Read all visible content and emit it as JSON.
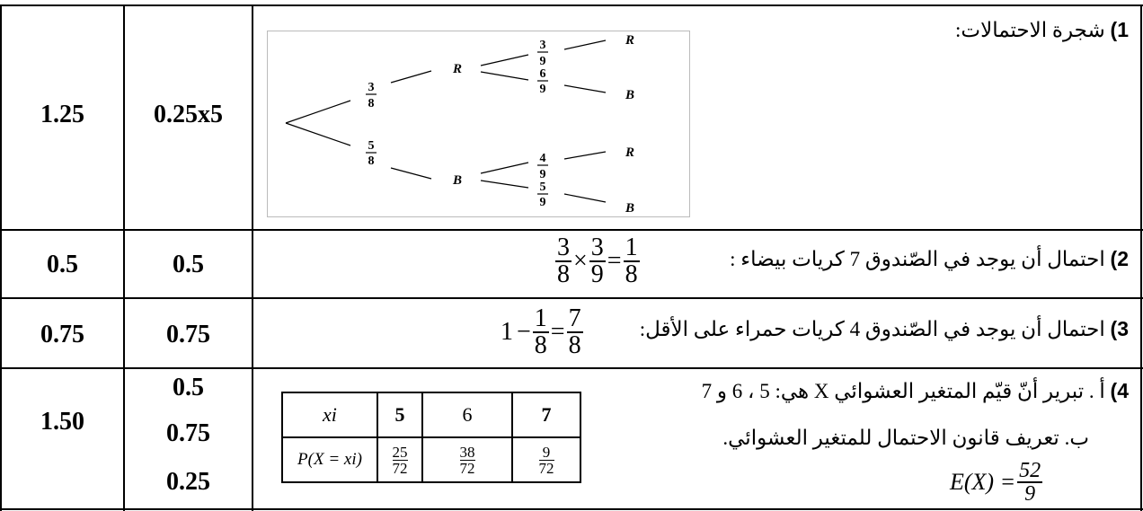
{
  "rows": [
    {
      "total": "1.25",
      "points": [
        "0.25x5"
      ],
      "question": {
        "number": "1)",
        "text": "شجرة الاحتمالات:"
      }
    },
    {
      "total": "0.5",
      "points": [
        "0.5"
      ],
      "question": {
        "number": "2)",
        "text": "احتمال أن يوجد في الصّندوق 7 كريات بيضاء :",
        "formula": {
          "a_n": "3",
          "a_d": "8",
          "op1": "×",
          "b_n": "3",
          "b_d": "9",
          "op2": "=",
          "c_n": "1",
          "c_d": "8"
        }
      }
    },
    {
      "total": "0.75",
      "points": [
        "0.75"
      ],
      "question": {
        "number": "3)",
        "text": "احتمال أن يوجد في الصّندوق 4 كريات حمراء على الأقل:",
        "formula": {
          "one": "1",
          "op1": "−",
          "a_n": "1",
          "a_d": "8",
          "op2": "=",
          "b_n": "7",
          "b_d": "8"
        }
      }
    },
    {
      "total": "1.50",
      "points": [
        "0.5",
        "0.75",
        "0.25"
      ],
      "question": {
        "number": "4)",
        "line_a": "أ . تبرير أنّ قيّم المتغير العشوائي X هي: 5 ، 6 و 7",
        "line_b": "ب. تعريف قانون الاحتمال للمتغير العشوائي.",
        "expectation": {
          "lhs": "E(X) =",
          "n": "52",
          "d": "9"
        }
      }
    }
  ],
  "tree": {
    "first": [
      {
        "label": "R",
        "p_n": "3",
        "p_d": "8"
      },
      {
        "label": "B",
        "p_n": "5",
        "p_d": "8"
      }
    ],
    "second": [
      {
        "label": "R",
        "p_n": "3",
        "p_d": "9"
      },
      {
        "label": "B",
        "p_n": "6",
        "p_d": "9"
      },
      {
        "label": "R",
        "p_n": "4",
        "p_d": "9"
      },
      {
        "label": "B",
        "p_n": "5",
        "p_d": "9"
      }
    ]
  },
  "law_table": {
    "header": [
      "xi",
      "5",
      "6",
      "7"
    ],
    "row_label": "P(X = xi)",
    "probs": [
      {
        "n": "25",
        "d": "72"
      },
      {
        "n": "38",
        "d": "72"
      },
      {
        "n": "9",
        "d": "72"
      }
    ]
  }
}
